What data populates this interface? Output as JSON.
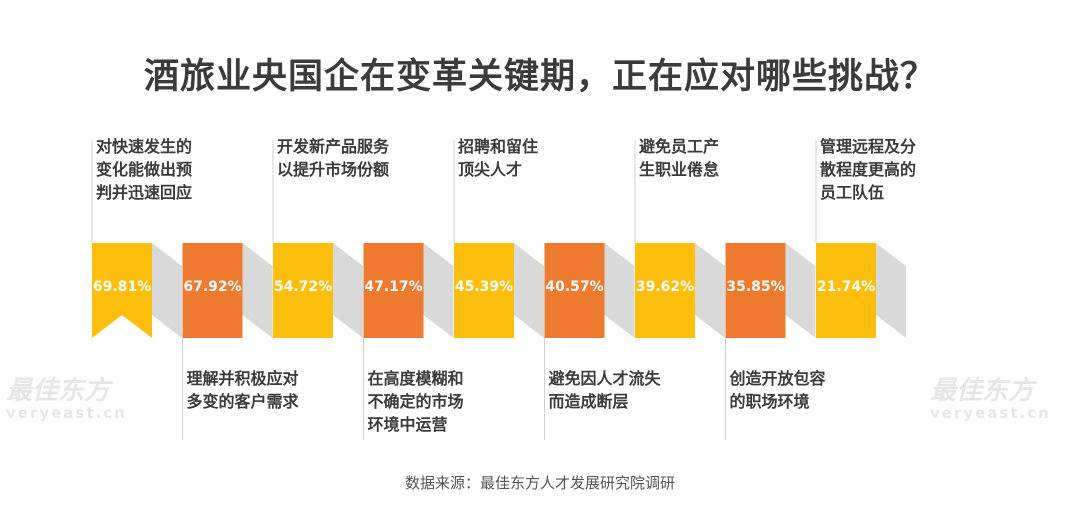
{
  "title": "酒旅业央国企在变革关键期，正在应对哪些挑战？",
  "source": "数据来源：最佳东方人才发展研究院调研",
  "watermark": {
    "cn": "最佳东方",
    "en": "veryeast.cn"
  },
  "colors": {
    "yellow": "#FDBE0E",
    "orange": "#EE7A30",
    "shadow": "#D9D9D9"
  },
  "chart_data": {
    "type": "bar",
    "categories": [
      "对快速发生的变化能做出预判并迅速回应",
      "理解并积极应对多变的客户需求",
      "开发新产品服务以提升市场份额",
      "在高度模糊和不确定的市场环境中运营",
      "招聘和留住顶尖人才",
      "避免因人才流失而造成断层",
      "避免员工产生职业倦怠",
      "创造开放包容的职场环境",
      "管理远程及分散程度更高的员工队伍"
    ],
    "labels": [
      [
        "对快速发生的",
        "变化能做出预",
        "判并迅速回应"
      ],
      [
        "理解并积极应对",
        "多变的客户需求"
      ],
      [
        "开发新产品服务",
        "以提升市场份额"
      ],
      [
        "在高度模糊和",
        "不确定的市场",
        "环境中运营"
      ],
      [
        "招聘和留住",
        "顶尖人才"
      ],
      [
        "避免因人才流失",
        "而造成断层"
      ],
      [
        "避免员工产",
        "生职业倦怠"
      ],
      [
        "创造开放包容",
        "的职场环境"
      ],
      [
        "管理远程及分",
        "散程度更高的",
        "员工队伍"
      ]
    ],
    "values": [
      69.81,
      67.92,
      54.72,
      47.17,
      45.39,
      40.57,
      39.62,
      35.85,
      21.74
    ],
    "value_labels": [
      "69.81%",
      "67.92%",
      "54.72%",
      "47.17%",
      "45.39%",
      "40.57%",
      "39.62%",
      "35.85%",
      "21.74%"
    ],
    "unit": "%"
  }
}
